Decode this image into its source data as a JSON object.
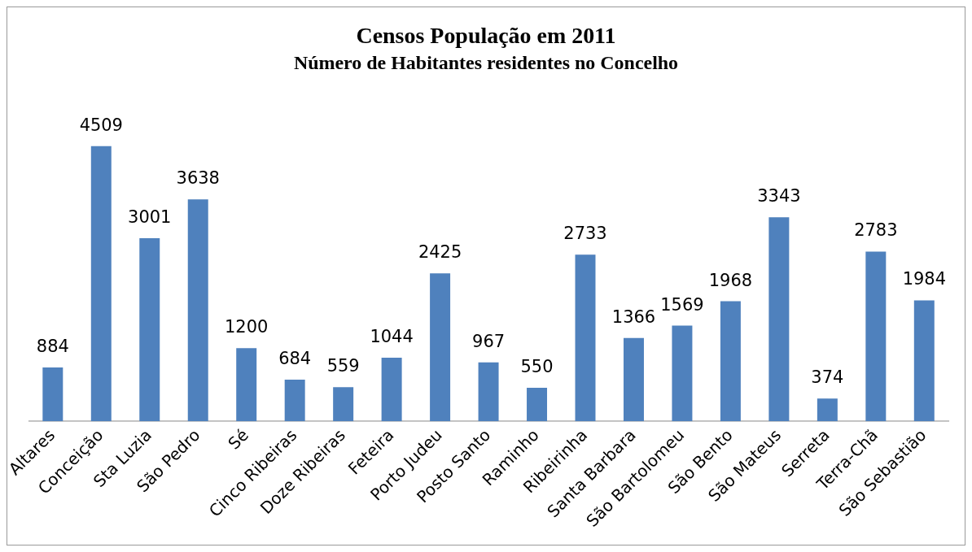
{
  "chart_data": {
    "type": "bar",
    "title": "Censos População em 2011",
    "subtitle": "Número de Habitantes residentes no Concelho",
    "categories": [
      "Altares",
      "Conceição",
      "Sta Luzia",
      "São Pedro",
      "Sé",
      "Cinco Ribeiras",
      "Doze Ribeiras",
      "Feteira",
      "Porto Judeu",
      "Posto Santo",
      "Raminho",
      "Ribeirinha",
      "Santa Barbara",
      "São Bartolomeu",
      "São Bento",
      "São Mateus",
      "Serreta",
      "Terra-Chã",
      "São Sebastião"
    ],
    "values": [
      884,
      4509,
      3001,
      3638,
      1200,
      684,
      559,
      1044,
      2425,
      967,
      550,
      2733,
      1366,
      1569,
      1968,
      3343,
      374,
      2783,
      1984
    ],
    "color": "#4f81bd",
    "data_labels": true,
    "grid": false,
    "legend": false
  }
}
